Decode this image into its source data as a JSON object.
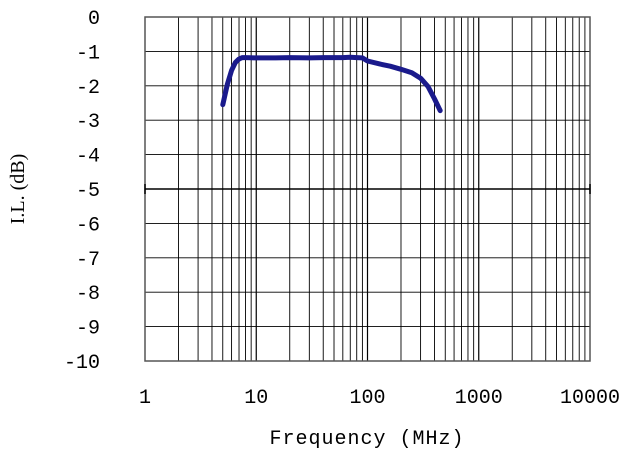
{
  "chart_data": {
    "type": "line",
    "xlabel": "Frequency (MHz)",
    "ylabel": "I.L. (dB)",
    "x_scale": "log",
    "xlim": [
      1,
      10000
    ],
    "ylim": [
      -10,
      0
    ],
    "grid": true,
    "x_ticks": [
      1,
      10,
      100,
      1000,
      10000
    ],
    "x_tick_labels": [
      "1",
      "10",
      "100",
      "1000",
      "10000"
    ],
    "y_ticks": [
      0,
      -1,
      -2,
      -3,
      -4,
      -5,
      -6,
      -7,
      -8,
      -9,
      -10
    ],
    "y_tick_labels": [
      "0",
      "-1",
      "-2",
      "-3",
      "-4",
      "-5",
      "-6",
      "-7",
      "-8",
      "-9",
      "-10"
    ],
    "series_color": "#1a1a8c",
    "series": [
      {
        "x": [
          5,
          5.5,
          6,
          6.5,
          7,
          7.5,
          8,
          10,
          15,
          20,
          30,
          40,
          50,
          60,
          70,
          80,
          90,
          100,
          130,
          160,
          200,
          250,
          300,
          350,
          400,
          450
        ],
        "y": [
          -2.55,
          -1.95,
          -1.55,
          -1.32,
          -1.22,
          -1.18,
          -1.18,
          -1.19,
          -1.19,
          -1.18,
          -1.19,
          -1.18,
          -1.18,
          -1.18,
          -1.17,
          -1.18,
          -1.19,
          -1.28,
          -1.37,
          -1.43,
          -1.52,
          -1.62,
          -1.78,
          -2.02,
          -2.38,
          -2.72
        ]
      }
    ]
  }
}
